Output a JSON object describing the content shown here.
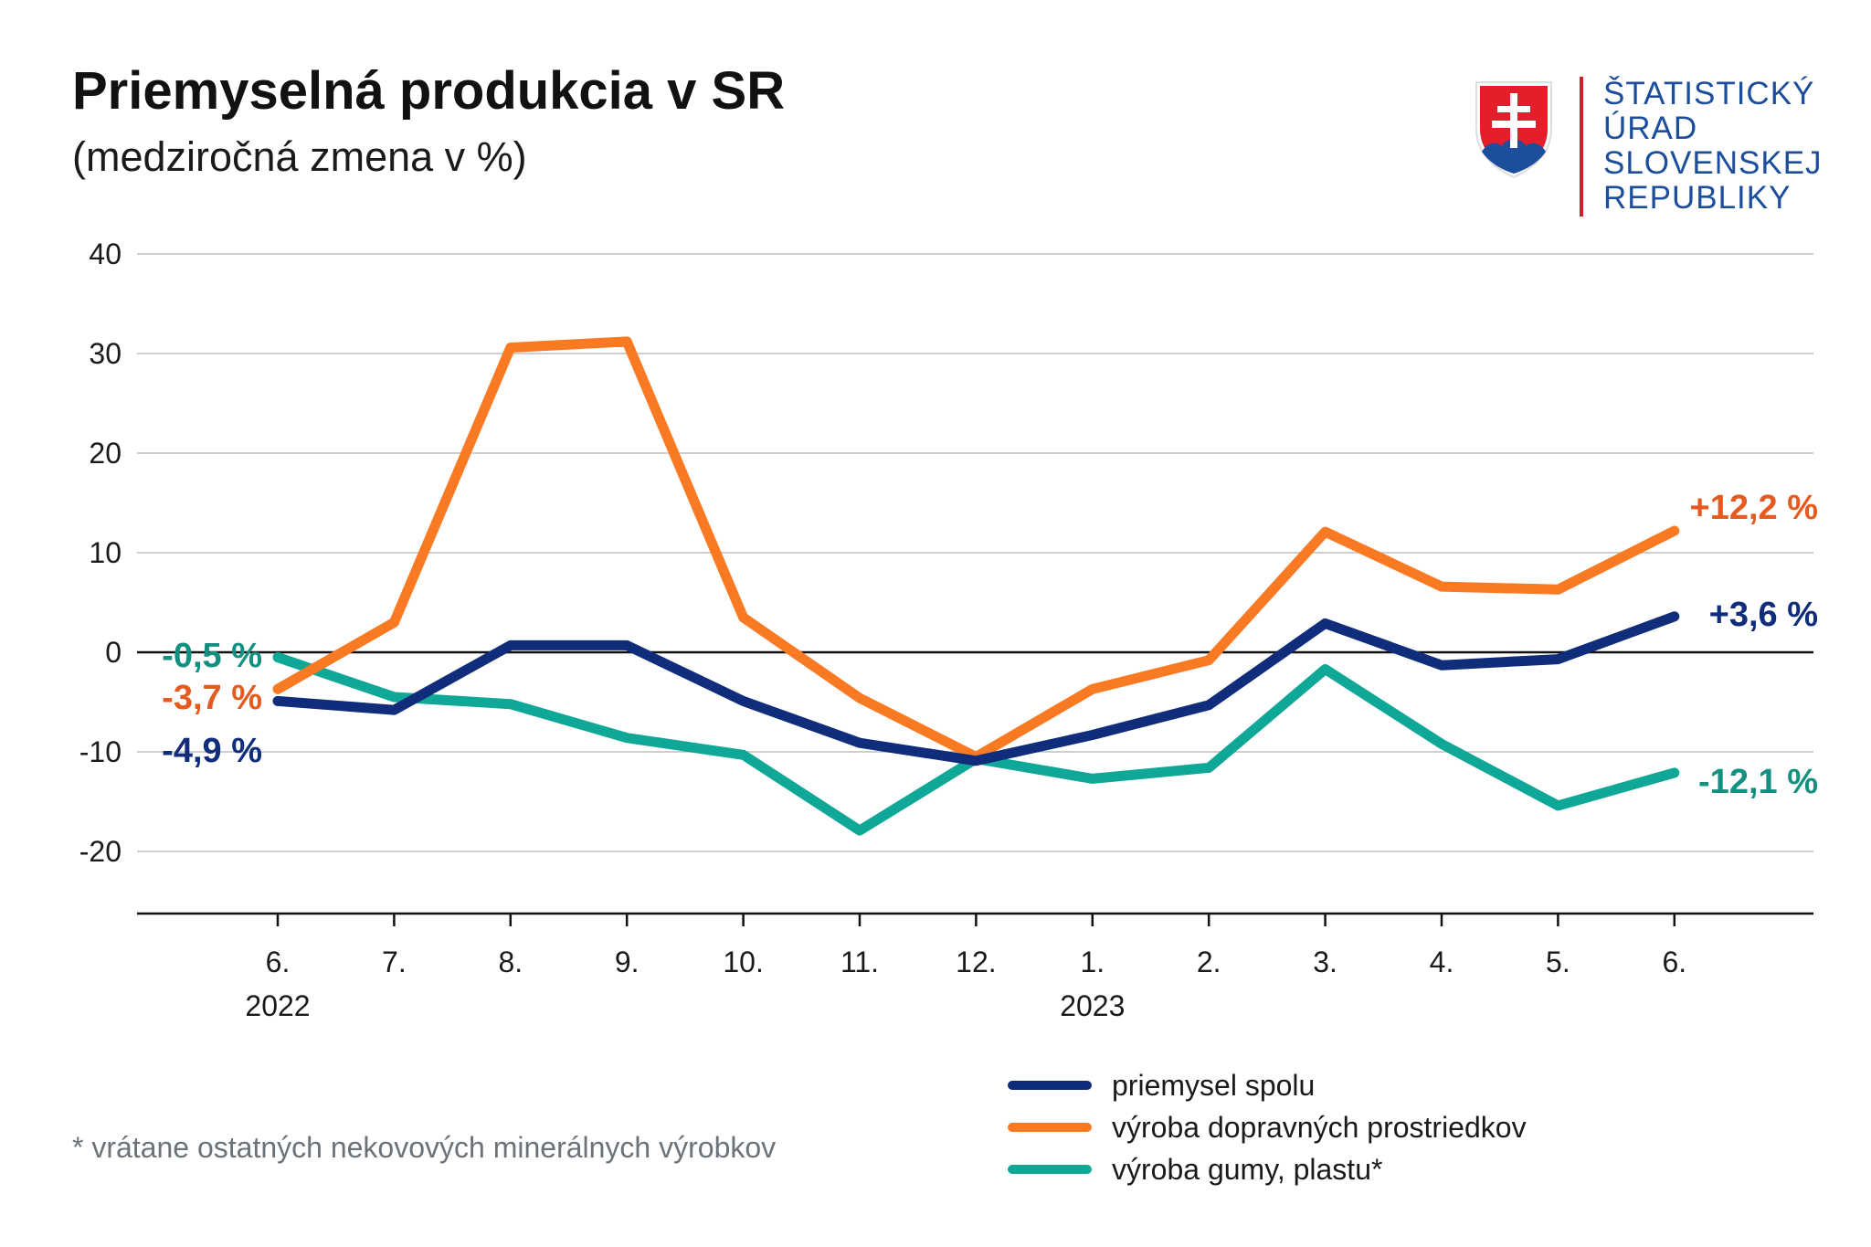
{
  "header": {
    "title": "Priemyselná produkcia v SR",
    "subtitle": "(medziročná zmena v %)"
  },
  "logo": {
    "icon": "slovak-coat-of-arms-icon",
    "lines": [
      "ŠTATISTICKÝ",
      "ÚRAD",
      "SLOVENSKEJ",
      "REPUBLIKY"
    ],
    "color": "#1c4e9c",
    "bar_color": "#d21f2e"
  },
  "footnote": "* vrátane ostatných nekovových minerálnych výrobkov",
  "chart_data": {
    "type": "line",
    "title": "Priemyselná produkcia v SR",
    "subtitle": "(medziročná zmena v %)",
    "categories": [
      "6.",
      "7.",
      "8.",
      "9.",
      "10.",
      "11.",
      "12.",
      "1.",
      "2.",
      "3.",
      "4.",
      "5.",
      "6."
    ],
    "year_labels": [
      {
        "index": 0,
        "label": "2022"
      },
      {
        "index": 7,
        "label": "2023"
      }
    ],
    "ylim": [
      -26,
      42
    ],
    "yticks": [
      40,
      30,
      20,
      10,
      0,
      -10,
      -20
    ],
    "ytick_labels": [
      "40",
      "30",
      "20",
      "10",
      "0",
      "-10",
      "-20"
    ],
    "grid": true,
    "legend_position": "bottom-right",
    "series": [
      {
        "name": "priemysel spolu",
        "color": "#0f2d7a",
        "values": [
          -4.9,
          -5.8,
          0.7,
          0.7,
          -4.9,
          -9.1,
          -10.9,
          -8.3,
          -5.3,
          2.9,
          -1.3,
          -0.7,
          3.6
        ],
        "start_label": "-4,9 %",
        "end_label": "+3,6 %"
      },
      {
        "name": "výroba dopravných prostriedkov",
        "color": "#f97a23",
        "label_color": "#e55b1f",
        "values": [
          -3.7,
          3.0,
          30.6,
          31.2,
          3.5,
          -4.6,
          -10.5,
          -3.7,
          -0.8,
          12.1,
          6.6,
          6.3,
          12.2
        ],
        "start_label": "-3,7 %",
        "end_label": "+12,2 %"
      },
      {
        "name": "výroba gumy, plastu*",
        "color": "#0fa898",
        "label_color": "#13907f",
        "values": [
          -0.5,
          -4.5,
          -5.2,
          -8.6,
          -10.3,
          -17.9,
          -10.7,
          -12.7,
          -11.6,
          -1.7,
          -9.2,
          -15.4,
          -12.1
        ],
        "start_label": "-0,5 %",
        "end_label": "-12,1 %"
      }
    ]
  }
}
